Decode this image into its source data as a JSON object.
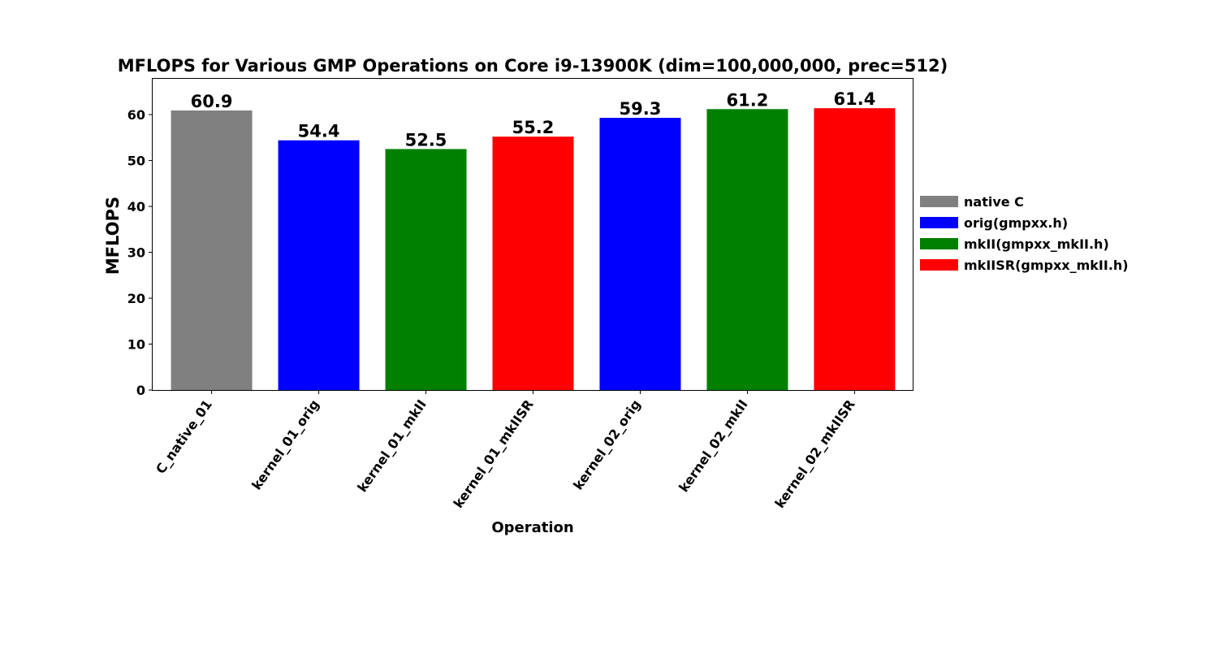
{
  "chart_data": {
    "type": "bar",
    "title": "MFLOPS for Various GMP Operations on Core i9-13900K (dim=100,000,000, prec=512)",
    "xlabel": "Operation",
    "ylabel": "MFLOPS",
    "ylim": [
      0,
      67.8
    ],
    "yticks": [
      0,
      10,
      20,
      30,
      40,
      50,
      60
    ],
    "grid": false,
    "legend_position": "right",
    "categories": [
      "C_native_01",
      "kernel_01_orig",
      "kernel_01_mkII",
      "kernel_01_mkIISR",
      "kernel_02_orig",
      "kernel_02_mkII",
      "kernel_02_mkIISR"
    ],
    "values": [
      60.9,
      54.4,
      52.5,
      55.2,
      59.3,
      61.2,
      61.4
    ],
    "value_labels": [
      "60.9",
      "54.4",
      "52.5",
      "55.2",
      "59.3",
      "61.2",
      "61.4"
    ],
    "bar_colors": [
      "#808080",
      "#0000ff",
      "#008000",
      "#ff0000",
      "#0000ff",
      "#008000",
      "#ff0000"
    ],
    "legend": [
      {
        "label": "native C",
        "color": "#808080"
      },
      {
        "label": "orig(gmpxx.h)",
        "color": "#0000ff"
      },
      {
        "label": "mkII(gmpxx_mkII.h)",
        "color": "#008000"
      },
      {
        "label": "mkIISR(gmpxx_mkII.h)",
        "color": "#ff0000"
      }
    ]
  }
}
